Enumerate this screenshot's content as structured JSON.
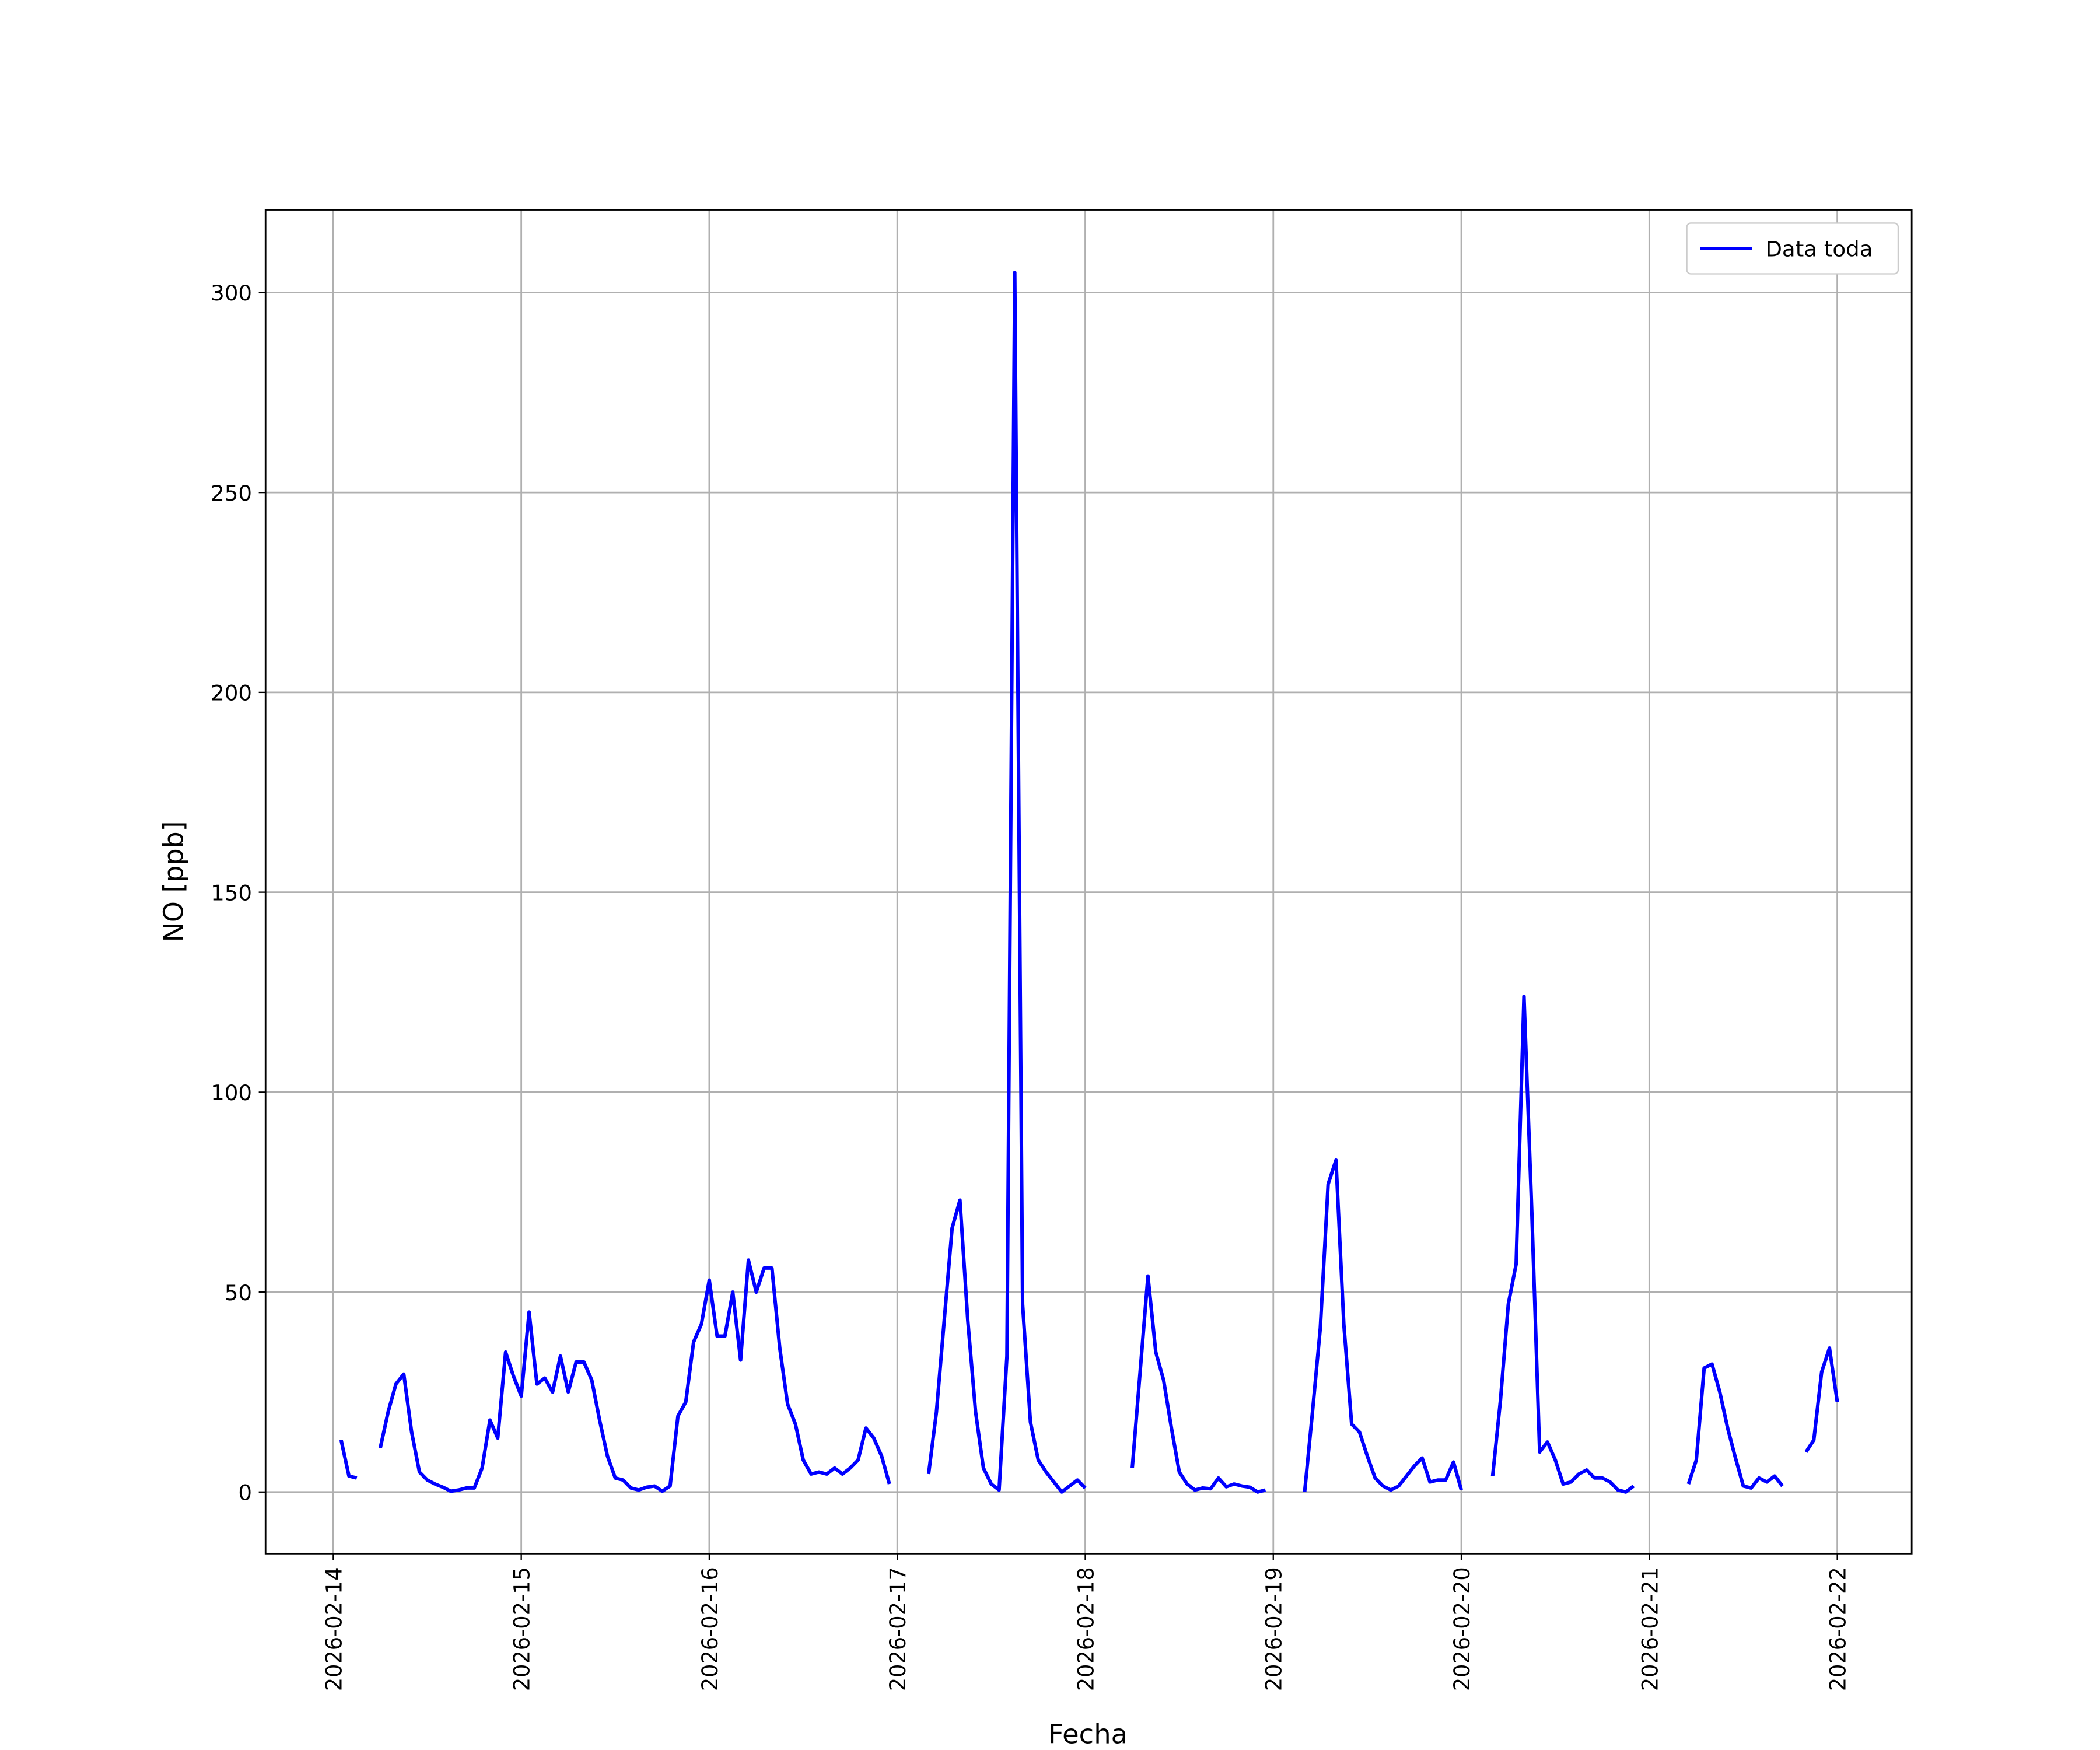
{
  "chart_data": {
    "type": "line",
    "xlabel": "Fecha",
    "ylabel": "NO [ppb]",
    "x": [
      "2026-02-14T01:00",
      "2026-02-14T02:00",
      "2026-02-14T03:00",
      "2026-02-14T04:00",
      "2026-02-14T06:00",
      "2026-02-14T07:00",
      "2026-02-14T08:00",
      "2026-02-14T09:00",
      "2026-02-14T10:00",
      "2026-02-14T11:00",
      "2026-02-14T12:00",
      "2026-02-14T13:00",
      "2026-02-14T14:00",
      "2026-02-14T15:00",
      "2026-02-14T16:00",
      "2026-02-14T17:00",
      "2026-02-14T18:00",
      "2026-02-14T19:00",
      "2026-02-14T20:00",
      "2026-02-14T21:00",
      "2026-02-14T22:00",
      "2026-02-14T23:00",
      "2026-02-15T00:00",
      "2026-02-15T01:00",
      "2026-02-15T02:00",
      "2026-02-15T03:00",
      "2026-02-15T04:00",
      "2026-02-15T05:00",
      "2026-02-15T06:00",
      "2026-02-15T07:00",
      "2026-02-15T08:00",
      "2026-02-15T09:00",
      "2026-02-15T10:00",
      "2026-02-15T11:00",
      "2026-02-15T12:00",
      "2026-02-15T13:00",
      "2026-02-15T14:00",
      "2026-02-15T15:00",
      "2026-02-15T16:00",
      "2026-02-15T17:00",
      "2026-02-15T18:00",
      "2026-02-15T19:00",
      "2026-02-15T20:00",
      "2026-02-15T21:00",
      "2026-02-15T22:00",
      "2026-02-15T23:00",
      "2026-02-16T00:00",
      "2026-02-16T01:00",
      "2026-02-16T02:00",
      "2026-02-16T03:00",
      "2026-02-16T04:00",
      "2026-02-16T05:00",
      "2026-02-16T06:00",
      "2026-02-16T07:00",
      "2026-02-16T08:00",
      "2026-02-16T09:00",
      "2026-02-16T10:00",
      "2026-02-16T11:00",
      "2026-02-16T12:00",
      "2026-02-16T13:00",
      "2026-02-16T14:00",
      "2026-02-16T15:00",
      "2026-02-16T16:00",
      "2026-02-16T17:00",
      "2026-02-16T18:00",
      "2026-02-16T19:00",
      "2026-02-16T20:00",
      "2026-02-16T21:00",
      "2026-02-16T22:00",
      "2026-02-16T23:00",
      "2026-02-17T00:00",
      "2026-02-17T04:00",
      "2026-02-17T05:00",
      "2026-02-17T06:00",
      "2026-02-17T07:00",
      "2026-02-17T08:00",
      "2026-02-17T09:00",
      "2026-02-17T10:00",
      "2026-02-17T11:00",
      "2026-02-17T12:00",
      "2026-02-17T13:00",
      "2026-02-17T14:00",
      "2026-02-17T15:00",
      "2026-02-17T16:00",
      "2026-02-17T17:00",
      "2026-02-17T18:00",
      "2026-02-17T19:00",
      "2026-02-17T20:00",
      "2026-02-17T21:00",
      "2026-02-17T22:00",
      "2026-02-17T23:00",
      "2026-02-18T00:00",
      "2026-02-18T01:00",
      "2026-02-18T06:00",
      "2026-02-18T07:00",
      "2026-02-18T08:00",
      "2026-02-18T09:00",
      "2026-02-18T10:00",
      "2026-02-18T11:00",
      "2026-02-18T12:00",
      "2026-02-18T13:00",
      "2026-02-18T14:00",
      "2026-02-18T15:00",
      "2026-02-18T16:00",
      "2026-02-18T17:00",
      "2026-02-18T18:00",
      "2026-02-18T19:00",
      "2026-02-18T20:00",
      "2026-02-18T21:00",
      "2026-02-18T22:00",
      "2026-02-18T23:00",
      "2026-02-19T00:00",
      "2026-02-19T04:00",
      "2026-02-19T05:00",
      "2026-02-19T06:00",
      "2026-02-19T07:00",
      "2026-02-19T08:00",
      "2026-02-19T09:00",
      "2026-02-19T10:00",
      "2026-02-19T11:00",
      "2026-02-19T12:00",
      "2026-02-19T13:00",
      "2026-02-19T14:00",
      "2026-02-19T15:00",
      "2026-02-19T16:00",
      "2026-02-19T17:00",
      "2026-02-19T18:00",
      "2026-02-19T19:00",
      "2026-02-19T20:00",
      "2026-02-19T21:00",
      "2026-02-19T22:00",
      "2026-02-19T23:00",
      "2026-02-20T00:00",
      "2026-02-20T01:00",
      "2026-02-20T04:00",
      "2026-02-20T05:00",
      "2026-02-20T06:00",
      "2026-02-20T07:00",
      "2026-02-20T08:00",
      "2026-02-20T09:00",
      "2026-02-20T10:00",
      "2026-02-20T11:00",
      "2026-02-20T12:00",
      "2026-02-20T13:00",
      "2026-02-20T14:00",
      "2026-02-20T15:00",
      "2026-02-20T16:00",
      "2026-02-20T17:00",
      "2026-02-20T18:00",
      "2026-02-20T19:00",
      "2026-02-20T20:00",
      "2026-02-20T21:00",
      "2026-02-20T22:00",
      "2026-02-20T23:00",
      "2026-02-21T05:00",
      "2026-02-21T06:00",
      "2026-02-21T07:00",
      "2026-02-21T08:00",
      "2026-02-21T09:00",
      "2026-02-21T10:00",
      "2026-02-21T11:00",
      "2026-02-21T12:00",
      "2026-02-21T13:00",
      "2026-02-21T14:00",
      "2026-02-21T15:00",
      "2026-02-21T16:00",
      "2026-02-21T17:00",
      "2026-02-21T18:00",
      "2026-02-21T20:00",
      "2026-02-21T21:00",
      "2026-02-21T22:00",
      "2026-02-21T23:00",
      "2026-02-22T00:00"
    ],
    "series": [
      {
        "name": "Data toda",
        "color": "#0000ff",
        "values": [
          13,
          4,
          3.5,
          null,
          11,
          20,
          27,
          29.5,
          15,
          5,
          3,
          2,
          1.2,
          0.2,
          0.5,
          1,
          1,
          6,
          18,
          13.5,
          35,
          29,
          24,
          45,
          27,
          28.5,
          25,
          34,
          25,
          32.5,
          32.5,
          28,
          18,
          9,
          3.5,
          3,
          1,
          0.5,
          1.2,
          1.5,
          0.2,
          1.5,
          19,
          22.5,
          37.5,
          42,
          53,
          39,
          39,
          50,
          33,
          58,
          50,
          56,
          56,
          36,
          22,
          17,
          8,
          4.5,
          5,
          4.5,
          6,
          4.5,
          6,
          8,
          16,
          13.5,
          9,
          2,
          null,
          4.5,
          20,
          43,
          66,
          73,
          43,
          20,
          6,
          2,
          0.5,
          34,
          305,
          47,
          17.5,
          8,
          5,
          2.5,
          0,
          1.5,
          3,
          1,
          null,
          6,
          30,
          54,
          35,
          28,
          16,
          5,
          2,
          0.5,
          1,
          0.8,
          3.5,
          1.3,
          2,
          1.5,
          1.2,
          0,
          0.5,
          null,
          0,
          20,
          41,
          77,
          83,
          42,
          17,
          15,
          9,
          3.5,
          1.5,
          0.5,
          1.5,
          4,
          6.5,
          8.5,
          2.5,
          3,
          3,
          7.5,
          0.5,
          null,
          4,
          23,
          47,
          57,
          124,
          70,
          10,
          12.5,
          8,
          2,
          2.5,
          4.5,
          5.5,
          3.5,
          3.5,
          2.5,
          0.5,
          0,
          1.5,
          null,
          2,
          8,
          31,
          32,
          25,
          16,
          8.5,
          1.5,
          1,
          3.5,
          2.5,
          4,
          1.5,
          null,
          10,
          13,
          30,
          36,
          22.5
        ]
      }
    ],
    "xlim": [
      "2026-02-13T15:21",
      "2026-02-22T09:30"
    ],
    "xticks": [
      "2026-02-14",
      "2026-02-15",
      "2026-02-16",
      "2026-02-17",
      "2026-02-18",
      "2026-02-19",
      "2026-02-20",
      "2026-02-21",
      "2026-02-22"
    ],
    "ylim": [
      -15.4,
      320.7
    ],
    "yticks": [
      0,
      50,
      100,
      150,
      200,
      250,
      300
    ],
    "grid": true,
    "legend": "upper right"
  }
}
